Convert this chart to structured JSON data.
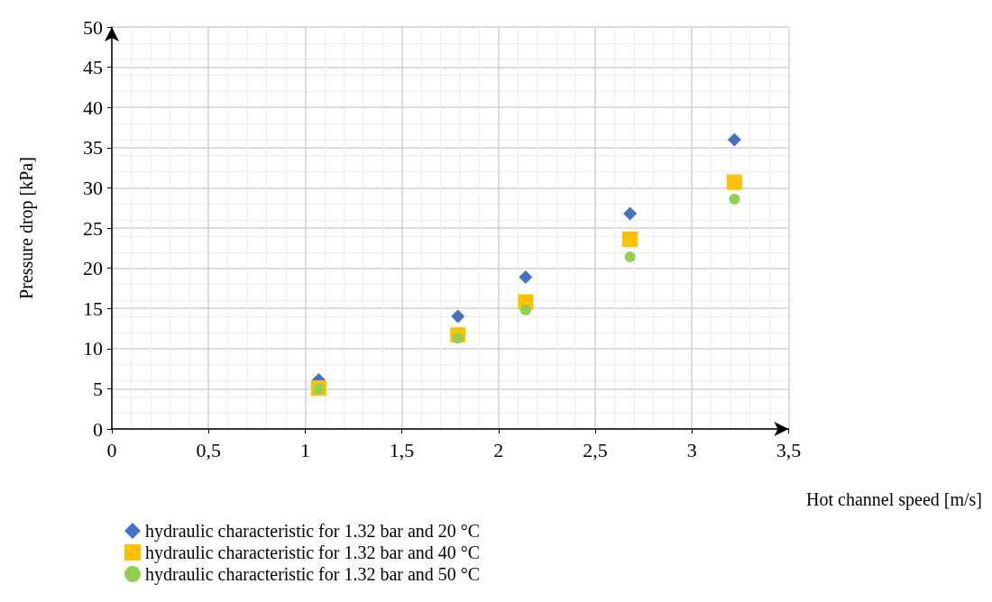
{
  "chart_data": {
    "type": "scatter",
    "xlabel": "Hot channel speed [m/s]",
    "ylabel": "Pressure drop [kPa]",
    "xlim": [
      0,
      3.5
    ],
    "xticks": [
      0,
      {
        "value": 0.5,
        "label": "0,5"
      },
      1,
      {
        "value": 1.5,
        "label": "1,5"
      },
      2,
      {
        "value": 2.5,
        "label": "2,5"
      },
      3,
      {
        "value": 3.5,
        "label": "3,5"
      }
    ],
    "ylim": [
      0,
      50
    ],
    "yticks": [
      0,
      5,
      10,
      15,
      20,
      25,
      30,
      35,
      40,
      45,
      50
    ],
    "grid": true,
    "legend": "bottom left",
    "series": [
      {
        "name": "hydraulic characteristic for 1.32 bar and 20 °C",
        "color": "#4472c4",
        "marker": "diamond",
        "x": [
          1.07,
          1.79,
          2.14,
          2.68,
          3.22
        ],
        "values": [
          6.1,
          14.0,
          18.9,
          26.8,
          36.0
        ]
      },
      {
        "name": "hydraulic characteristic for 1.32 bar and 40 °C",
        "color": "#ffc000",
        "marker": "square",
        "x": [
          1.07,
          1.79,
          2.14,
          2.68,
          3.22
        ],
        "values": [
          5.1,
          11.7,
          15.8,
          23.6,
          30.7
        ]
      },
      {
        "name": "hydraulic characteristic for 1.32 bar and 50 °C",
        "color": "#92d050",
        "marker": "circle",
        "x": [
          1.07,
          1.79,
          2.14,
          2.68,
          3.22
        ],
        "values": [
          5.0,
          11.3,
          14.8,
          21.4,
          28.6
        ]
      }
    ]
  }
}
